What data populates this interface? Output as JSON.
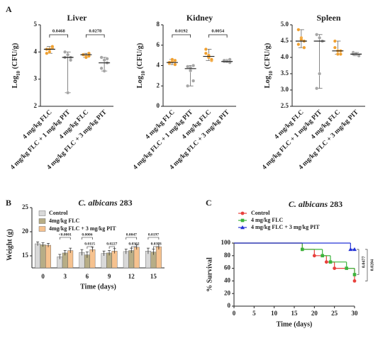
{
  "panel_labels": [
    "A",
    "B",
    "C"
  ],
  "chart_data": [
    {
      "type": "dot",
      "title": "Liver",
      "ylabel_parts": [
        "Log",
        "10",
        " (CFU/g)"
      ],
      "categories": [
        "4 mg/kg FLC",
        "4 mg/kg FLC + 1 mg/kg PIT",
        "4 mg/kg FLC",
        "4 mg/kg FLC + 3 mg/kg PIT"
      ],
      "colors": [
        "#f0a030",
        "#a6a6a6",
        "#f0a030",
        "#a6a6a6"
      ],
      "points": [
        [
          4.1,
          4.0,
          4.15,
          3.95,
          4.1,
          4.2
        ],
        [
          4.0,
          3.9,
          3.8,
          3.8,
          2.5,
          3.7
        ],
        [
          3.9,
          3.85,
          3.95,
          3.9,
          3.8,
          3.85
        ],
        [
          3.8,
          3.7,
          3.6,
          3.4,
          3.3,
          3.75
        ]
      ],
      "medians": [
        4.1,
        3.8,
        3.9,
        3.6
      ],
      "annotations": [
        "0.0468",
        "0.0278"
      ],
      "ylim": [
        2,
        5
      ],
      "yticks": [
        2,
        3,
        4,
        5
      ]
    },
    {
      "type": "dot",
      "title": "Kidney",
      "ylabel_parts": [
        "Log",
        "10",
        " (CFU/g)"
      ],
      "categories": [
        "4 mg/kg FLC",
        "4 mg/kg FLC + 1 mg/kg PIT",
        "4 mg/kg FLC",
        "4 mg/kg FLC + 3 mg/kg PIT"
      ],
      "colors": [
        "#f0a030",
        "#a6a6a6",
        "#f0a030",
        "#a6a6a6"
      ],
      "points": [
        [
          4.2,
          4.4,
          4.5,
          4.3,
          4.6,
          4.1
        ],
        [
          3.9,
          3.5,
          2.5,
          2.0,
          3.8,
          4.0
        ],
        [
          5.6,
          4.8,
          4.5,
          5.2,
          5.0,
          4.6
        ],
        [
          4.4,
          4.5,
          4.3,
          4.5,
          4.4,
          4.6
        ]
      ],
      "medians": [
        4.3,
        3.7,
        4.9,
        4.4
      ],
      "annotations": [
        "0.0192",
        "0.0054"
      ],
      "ylim": [
        0,
        8
      ],
      "yticks": [
        0,
        2,
        4,
        6,
        8
      ]
    },
    {
      "type": "dot",
      "title": "Spleen",
      "ylabel_parts": [
        "Log",
        "10",
        " (CFU/g)"
      ],
      "categories": [
        "4 mg/kg FLC",
        "4 mg/kg FLC + 1 mg/kg PIT",
        "4 mg/kg FLC",
        "4 mg/kg FLC + 3 mg/kg PIT"
      ],
      "colors": [
        "#f0a030",
        "#a6a6a6",
        "#f0a030",
        "#a6a6a6"
      ],
      "points": [
        [
          4.85,
          4.6,
          4.5,
          4.4,
          4.55,
          4.3
        ],
        [
          4.7,
          4.6,
          4.5,
          3.05,
          3.5,
          4.5
        ],
        [
          4.5,
          4.2,
          4.1,
          4.3,
          4.1,
          4.2
        ],
        [
          4.15,
          4.1,
          4.05,
          4.1,
          4.12
        ]
      ],
      "medians": [
        4.5,
        4.5,
        4.2,
        4.1
      ],
      "annotations": [],
      "ylim": [
        2.5,
        5.0
      ],
      "yticks": [
        2.5,
        {
          "value": 3.0,
          "label": "3.0"
        },
        3.5,
        {
          "value": 4.0,
          "label": "4.0"
        },
        4.5,
        {
          "value": 5.0,
          "label": "5.0"
        }
      ]
    },
    {
      "type": "bar",
      "title_parts": [
        "C. albicans",
        " 283"
      ],
      "xlabel": "Time (days)",
      "ylabel": "Weight (g)",
      "categories": [
        "0",
        "3",
        "6",
        "9",
        "12",
        "15"
      ],
      "series": [
        {
          "name": "Control",
          "color": "#d9d9d9",
          "values": [
            17.5,
            14.8,
            15.7,
            15.5,
            15.9,
            16.0
          ],
          "errors": [
            0.4,
            0.5,
            0.6,
            0.5,
            0.5,
            0.6
          ]
        },
        {
          "name": "4mg/kg FLC",
          "color": "#b7ad86",
          "values": [
            17.3,
            15.6,
            15.2,
            15.6,
            16.1,
            15.8
          ],
          "errors": [
            0.4,
            0.5,
            0.6,
            0.5,
            0.5,
            0.6
          ]
        },
        {
          "name": "4mg/kg FLC + 3 mg/kg PIT",
          "color": "#f6c28f",
          "values": [
            17.2,
            16.1,
            16.3,
            16.0,
            16.8,
            16.9
          ],
          "errors": [
            0.4,
            0.5,
            0.5,
            0.5,
            0.5,
            0.6
          ]
        }
      ],
      "annotations": [
        [],
        [
          "<0.0001"
        ],
        [
          "0.0006",
          "0.0115"
        ],
        [
          "0.0227"
        ],
        [
          "0.0047",
          "0.0302"
        ],
        [
          "0.0197",
          "0.0373"
        ]
      ],
      "legend": "upper left",
      "ylim": [
        12.5,
        25
      ],
      "yticks": [
        15,
        20,
        25
      ]
    },
    {
      "type": "line",
      "step": true,
      "title_parts": [
        "C. albicans",
        " 283"
      ],
      "xlabel": "Time (days)",
      "ylabel": "% Survival",
      "series": [
        {
          "name": "Control",
          "color": "#e8413d",
          "marker": "circle",
          "x": [
            0,
            17,
            20,
            23,
            25,
            30
          ],
          "values": [
            100,
            90,
            80,
            70,
            60,
            40
          ]
        },
        {
          "name": "4 mg/kg FLC",
          "color": "#3cb43c",
          "marker": "square",
          "x": [
            0,
            17,
            22,
            24,
            28,
            30
          ],
          "values": [
            100,
            90,
            80,
            70,
            60,
            50
          ]
        },
        {
          "name": "4 mg/kg FLC + 3 mg/kg PIT",
          "color": "#2433d6",
          "marker": "triangle",
          "x": [
            0,
            29,
            30
          ],
          "values": [
            100,
            90,
            90
          ]
        }
      ],
      "annotations": [
        "0.0477",
        "0.0204"
      ],
      "legend": "upper left",
      "xlim": [
        0,
        30
      ],
      "xticks": [
        0,
        5,
        10,
        15,
        20,
        25,
        30
      ],
      "ylim": [
        0,
        100
      ],
      "yticks": [
        0,
        20,
        40,
        60,
        80,
        100
      ]
    }
  ]
}
